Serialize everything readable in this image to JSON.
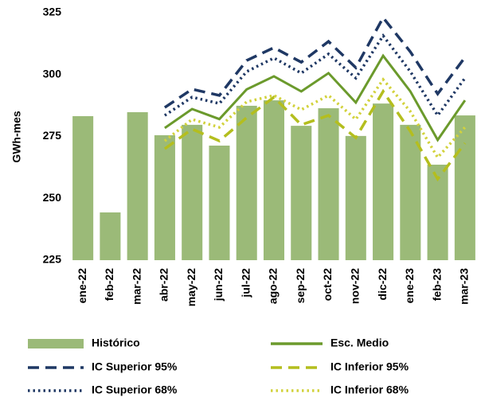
{
  "chart_data": {
    "type": "combo",
    "y_label": "GWh-mes",
    "categories": [
      "ene-22",
      "feb-22",
      "mar-22",
      "abr-22",
      "may-22",
      "jun-22",
      "jul-22",
      "ago-22",
      "sep-22",
      "oct-22",
      "nov-22",
      "dic-22",
      "ene-23",
      "feb-23",
      "mar-23"
    ],
    "ylim": [
      225,
      325
    ],
    "yticks": [
      225,
      250,
      275,
      300,
      325
    ],
    "grid": false,
    "series": [
      {
        "name": "Histórico",
        "kind": "bar",
        "color": "#9bba78",
        "values": [
          283.2,
          244.3,
          284.8,
          275.5,
          279.7,
          271.3,
          287.4,
          289.6,
          279.3,
          286.4,
          275.2,
          288.3,
          279.7,
          263.6,
          283.5
        ]
      },
      {
        "name": "Esc. Medio",
        "kind": "line",
        "dash": "solid",
        "color": "#6b9a2c",
        "values": [
          null,
          null,
          null,
          278.4,
          286.1,
          282.0,
          294.0,
          299.3,
          293.2,
          300.6,
          288.7,
          307.6,
          293.2,
          273.6,
          289.6
        ]
      },
      {
        "name": "IC Superior 95%",
        "kind": "line",
        "dash": "dashed",
        "color": "#1f3864",
        "values": [
          null,
          null,
          null,
          286.7,
          294.1,
          291.6,
          305.7,
          310.9,
          305.0,
          313.4,
          302.8,
          323.0,
          309.2,
          292.2,
          307.0
        ]
      },
      {
        "name": "IC Inferior 95%",
        "kind": "line",
        "dash": "dashed",
        "color": "#b4be1e",
        "values": [
          null,
          null,
          null,
          270.0,
          278.0,
          273.2,
          282.6,
          290.9,
          279.7,
          283.5,
          274.5,
          293.2,
          277.1,
          257.8,
          272.3
        ]
      },
      {
        "name": "IC Superior 68%",
        "kind": "line",
        "dash": "dotted",
        "color": "#1f3864",
        "values": [
          null,
          null,
          null,
          283.5,
          290.9,
          288.3,
          301.2,
          306.7,
          300.6,
          308.3,
          298.6,
          315.7,
          301.2,
          283.5,
          298.6
        ]
      },
      {
        "name": "IC Inferior 68%",
        "kind": "line",
        "dash": "dotted",
        "color": "#d2d23c",
        "values": [
          null,
          null,
          null,
          273.2,
          281.9,
          278.7,
          289.0,
          291.6,
          285.8,
          291.6,
          281.9,
          298.0,
          285.1,
          266.5,
          278.7
        ]
      }
    ]
  }
}
